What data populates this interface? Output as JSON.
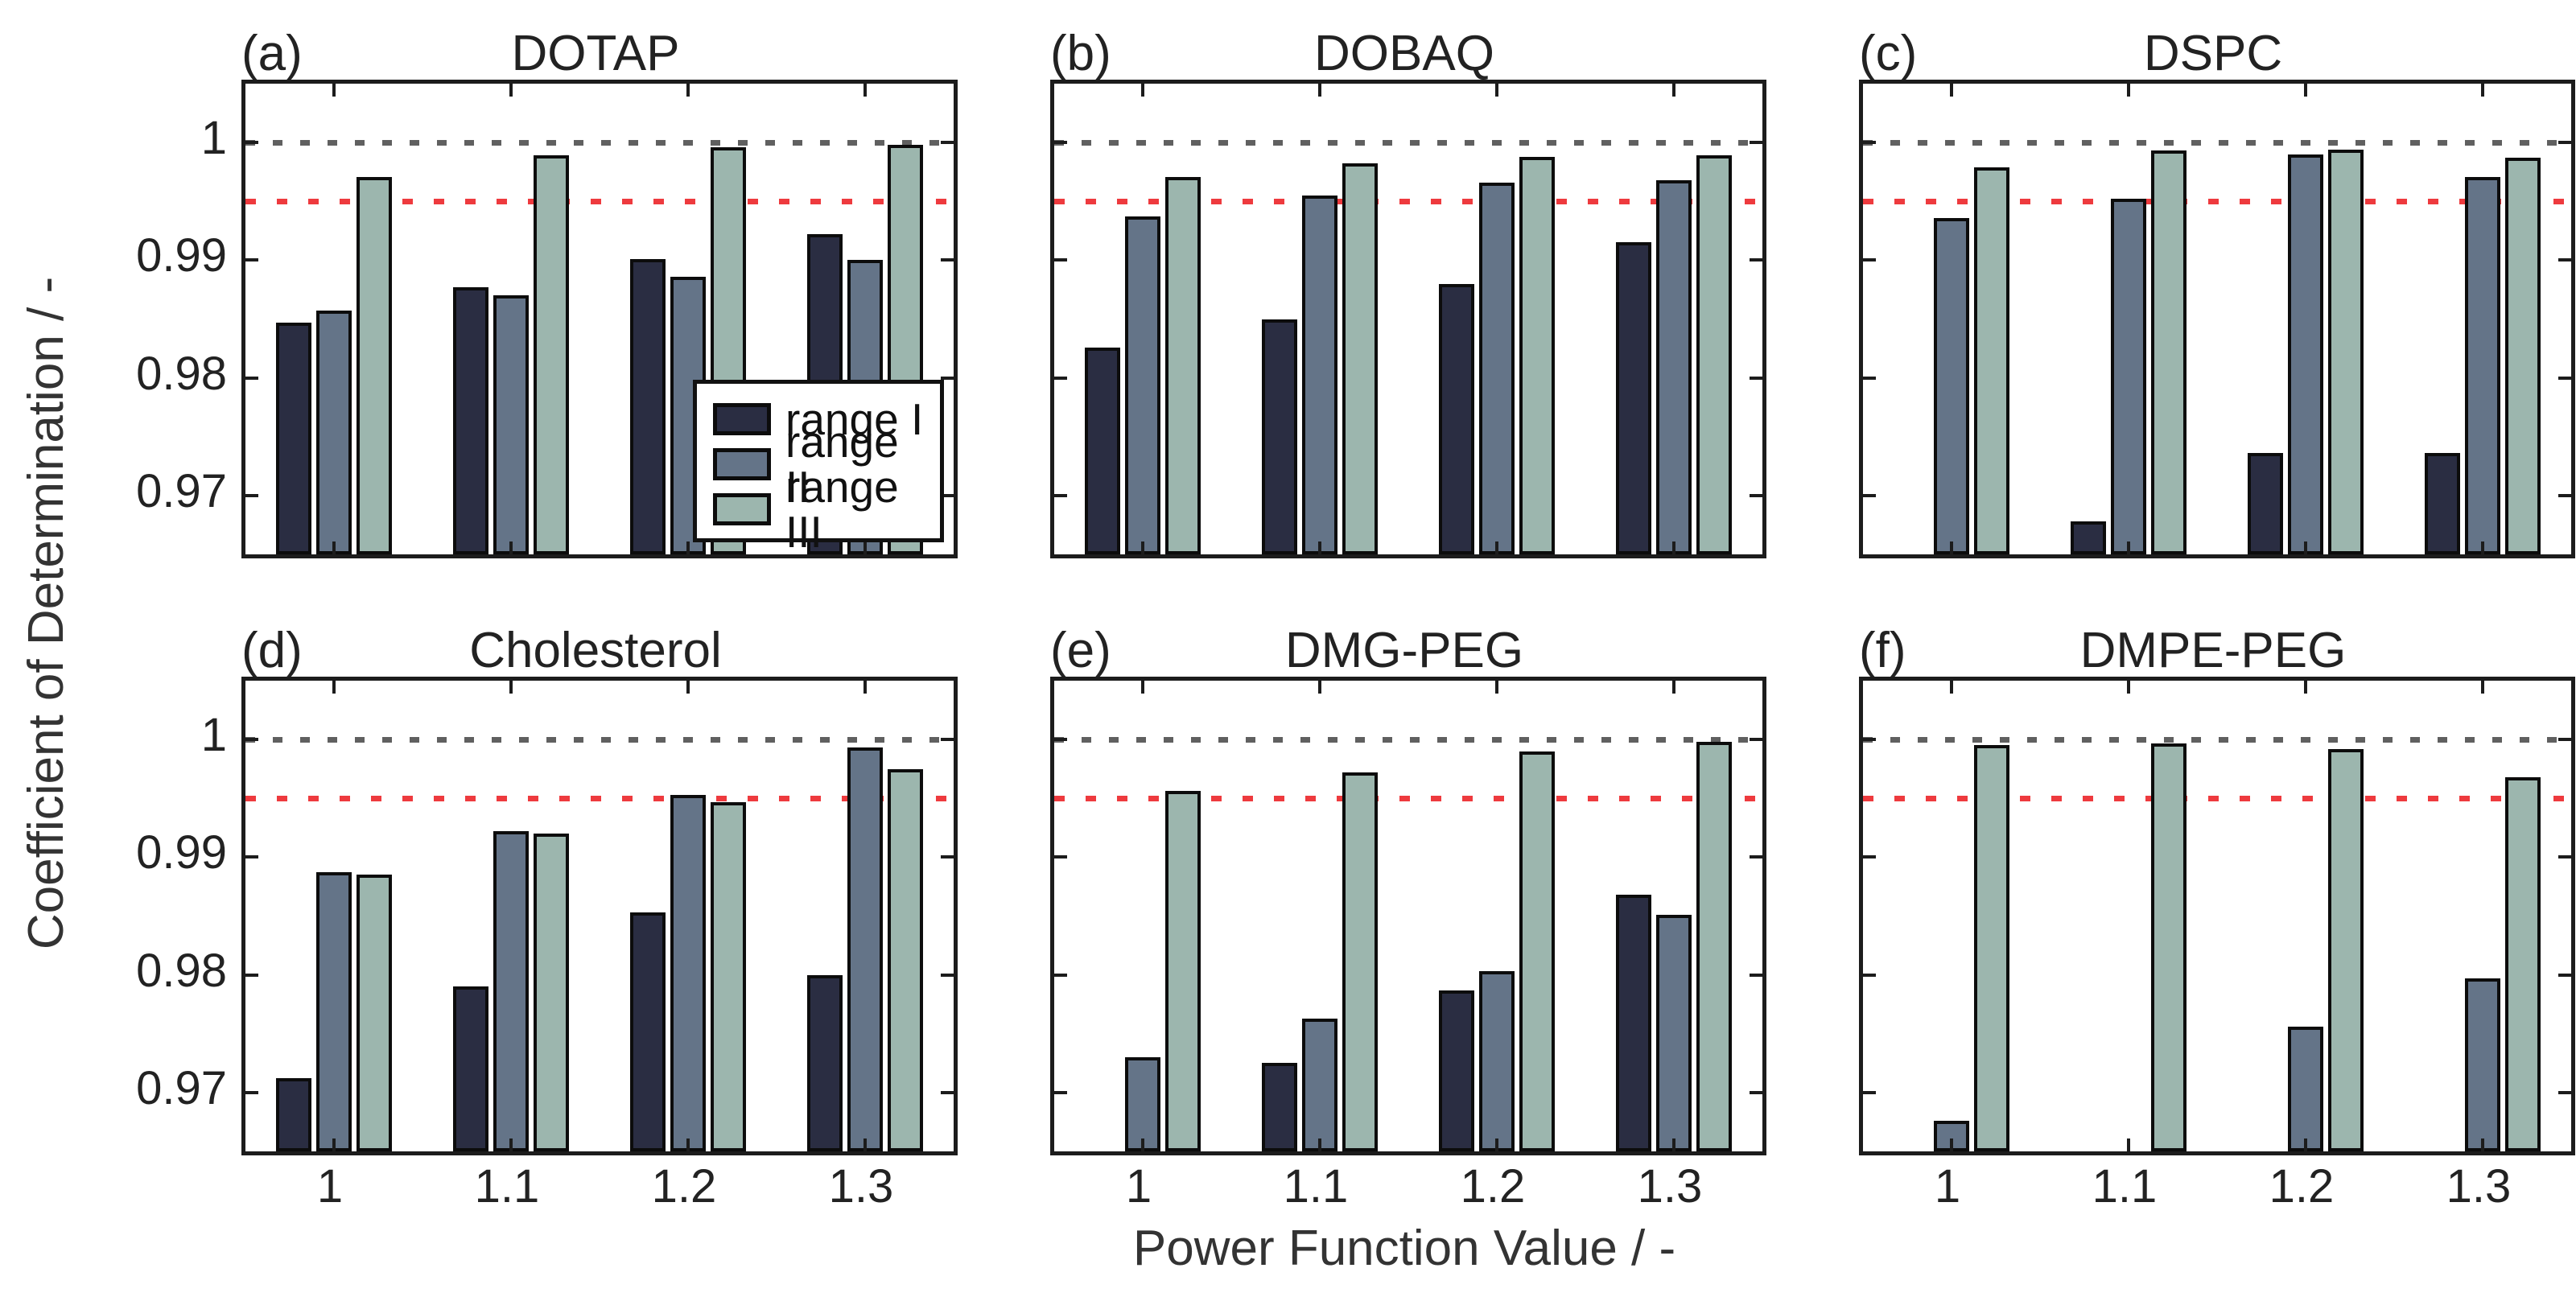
{
  "figure": {
    "y_axis_label": "Coefficient of Determination / -",
    "x_axis_label": "Power Function Value / -",
    "legend_labels": [
      "range I",
      "range II",
      "range III"
    ],
    "colors": {
      "range_i": "#2a2d42",
      "range_ii": "#647488",
      "range_iii": "#9cb6ae",
      "ref_unity_line": "#606060",
      "ref_threshold_line": "#ee3a3e",
      "axis": "#1c1c1c"
    }
  },
  "chart_data": {
    "type": "bar",
    "ylim": [
      0.965,
      1.005
    ],
    "grid": "off",
    "legend_position": "inside panel (a), lower right",
    "y_ticks": [
      {
        "value": 1.0,
        "label": "1"
      },
      {
        "value": 0.99,
        "label": "0.99"
      },
      {
        "value": 0.98,
        "label": "0.98"
      },
      {
        "value": 0.97,
        "label": "0.97"
      }
    ],
    "categories": [
      "1",
      "1.1",
      "1.2",
      "1.3"
    ],
    "reference_lines": [
      {
        "value": 1.0,
        "color_key": "ref_unity_line"
      },
      {
        "value": 0.995,
        "color_key": "ref_threshold_line"
      }
    ],
    "panels": [
      {
        "panel": "(a)",
        "title": "DOTAP",
        "series": [
          {
            "name": "range I",
            "values": [
              0.9847,
              0.9877,
              0.9901,
              0.9922
            ]
          },
          {
            "name": "range II",
            "values": [
              0.9857,
              0.987,
              0.9886,
              0.99
            ]
          },
          {
            "name": "range III",
            "values": [
              0.9971,
              0.9989,
              0.9996,
              0.9998
            ]
          }
        ]
      },
      {
        "panel": "(b)",
        "title": "DOBAQ",
        "series": [
          {
            "name": "range I",
            "values": [
              0.9826,
              0.985,
              0.988,
              0.9915
            ]
          },
          {
            "name": "range II",
            "values": [
              0.9937,
              0.9955,
              0.9966,
              0.9968
            ]
          },
          {
            "name": "range III",
            "values": [
              0.9971,
              0.9982,
              0.9988,
              0.9989
            ]
          }
        ]
      },
      {
        "panel": "(c)",
        "title": "DSPC",
        "series": [
          {
            "name": "range I",
            "values": [
              null,
              0.9678,
              0.9736,
              0.9736
            ]
          },
          {
            "name": "range II",
            "values": [
              0.9936,
              0.9952,
              0.999,
              0.9971
            ]
          },
          {
            "name": "range III",
            "values": [
              0.9979,
              0.9993,
              0.9994,
              0.9987
            ]
          }
        ]
      },
      {
        "panel": "(d)",
        "title": "Cholesterol",
        "series": [
          {
            "name": "range I",
            "values": [
              0.9712,
              0.979,
              0.9853,
              0.98
            ]
          },
          {
            "name": "range II",
            "values": [
              0.9887,
              0.9922,
              0.9953,
              0.9993
            ]
          },
          {
            "name": "range III",
            "values": [
              0.9885,
              0.992,
              0.9947,
              0.9975
            ]
          }
        ]
      },
      {
        "panel": "(e)",
        "title": "DMG-PEG",
        "series": [
          {
            "name": "range I",
            "values": [
              null,
              0.9725,
              0.9787,
              0.9868
            ]
          },
          {
            "name": "range II",
            "values": [
              0.973,
              0.9763,
              0.9803,
              0.9851
            ]
          },
          {
            "name": "range III",
            "values": [
              0.9956,
              0.9972,
              0.999,
              0.9998
            ]
          }
        ]
      },
      {
        "panel": "(f)",
        "title": "DMPE-PEG",
        "series": [
          {
            "name": "range I",
            "values": [
              null,
              null,
              null,
              null
            ]
          },
          {
            "name": "range II",
            "values": [
              0.9676,
              null,
              0.9756,
              0.9797
            ]
          },
          {
            "name": "range III",
            "values": [
              0.9995,
              0.9997,
              0.9992,
              0.9968
            ]
          }
        ]
      }
    ]
  }
}
